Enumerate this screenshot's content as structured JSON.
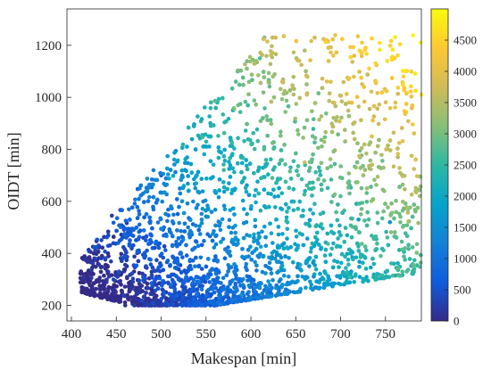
{
  "chart_data": {
    "type": "scatter",
    "xlabel": "Makespan [min]",
    "ylabel": "OIDT [min]",
    "xlim": [
      395,
      790
    ],
    "ylim": [
      140,
      1340
    ],
    "xticks": [
      400,
      450,
      500,
      550,
      600,
      650,
      700,
      750
    ],
    "yticks": [
      200,
      400,
      600,
      800,
      1000,
      1200
    ],
    "colorbar": {
      "clim": [
        0,
        5000
      ],
      "ticks": [
        0,
        500,
        1000,
        1500,
        2000,
        2500,
        3000,
        3500,
        4000,
        4500
      ],
      "colormap": "parula"
    },
    "marker_colors": [
      "#352a87",
      "#0f5cdd",
      "#1481d6",
      "#06a4ca",
      "#2eb7a4",
      "#87bf77",
      "#d1bb59",
      "#fec832",
      "#f9fb0e"
    ],
    "point_count_approx": 3500,
    "region_summary": [
      {
        "x": 415,
        "y": 385,
        "c": 40
      },
      {
        "x": 445,
        "y": 545,
        "c": 150
      },
      {
        "x": 460,
        "y": 200,
        "c": 60
      },
      {
        "x": 480,
        "y": 460,
        "c": 350
      },
      {
        "x": 500,
        "y": 700,
        "c": 600
      },
      {
        "x": 530,
        "y": 500,
        "c": 1100
      },
      {
        "x": 550,
        "y": 215,
        "c": 250
      },
      {
        "x": 560,
        "y": 640,
        "c": 1900
      },
      {
        "x": 580,
        "y": 950,
        "c": 2200
      },
      {
        "x": 595,
        "y": 520,
        "c": 1400
      },
      {
        "x": 610,
        "y": 1150,
        "c": 2700
      },
      {
        "x": 615,
        "y": 1230,
        "c": 3000
      },
      {
        "x": 635,
        "y": 1060,
        "c": 3800
      },
      {
        "x": 660,
        "y": 1180,
        "c": 3500
      },
      {
        "x": 660,
        "y": 750,
        "c": 3700
      },
      {
        "x": 700,
        "y": 620,
        "c": 2800
      },
      {
        "x": 720,
        "y": 530,
        "c": 1800
      },
      {
        "x": 755,
        "y": 520,
        "c": 1600
      },
      {
        "x": 770,
        "y": 1080,
        "c": 4500
      },
      {
        "x": 790,
        "y": 1010,
        "c": 4800
      }
    ]
  }
}
